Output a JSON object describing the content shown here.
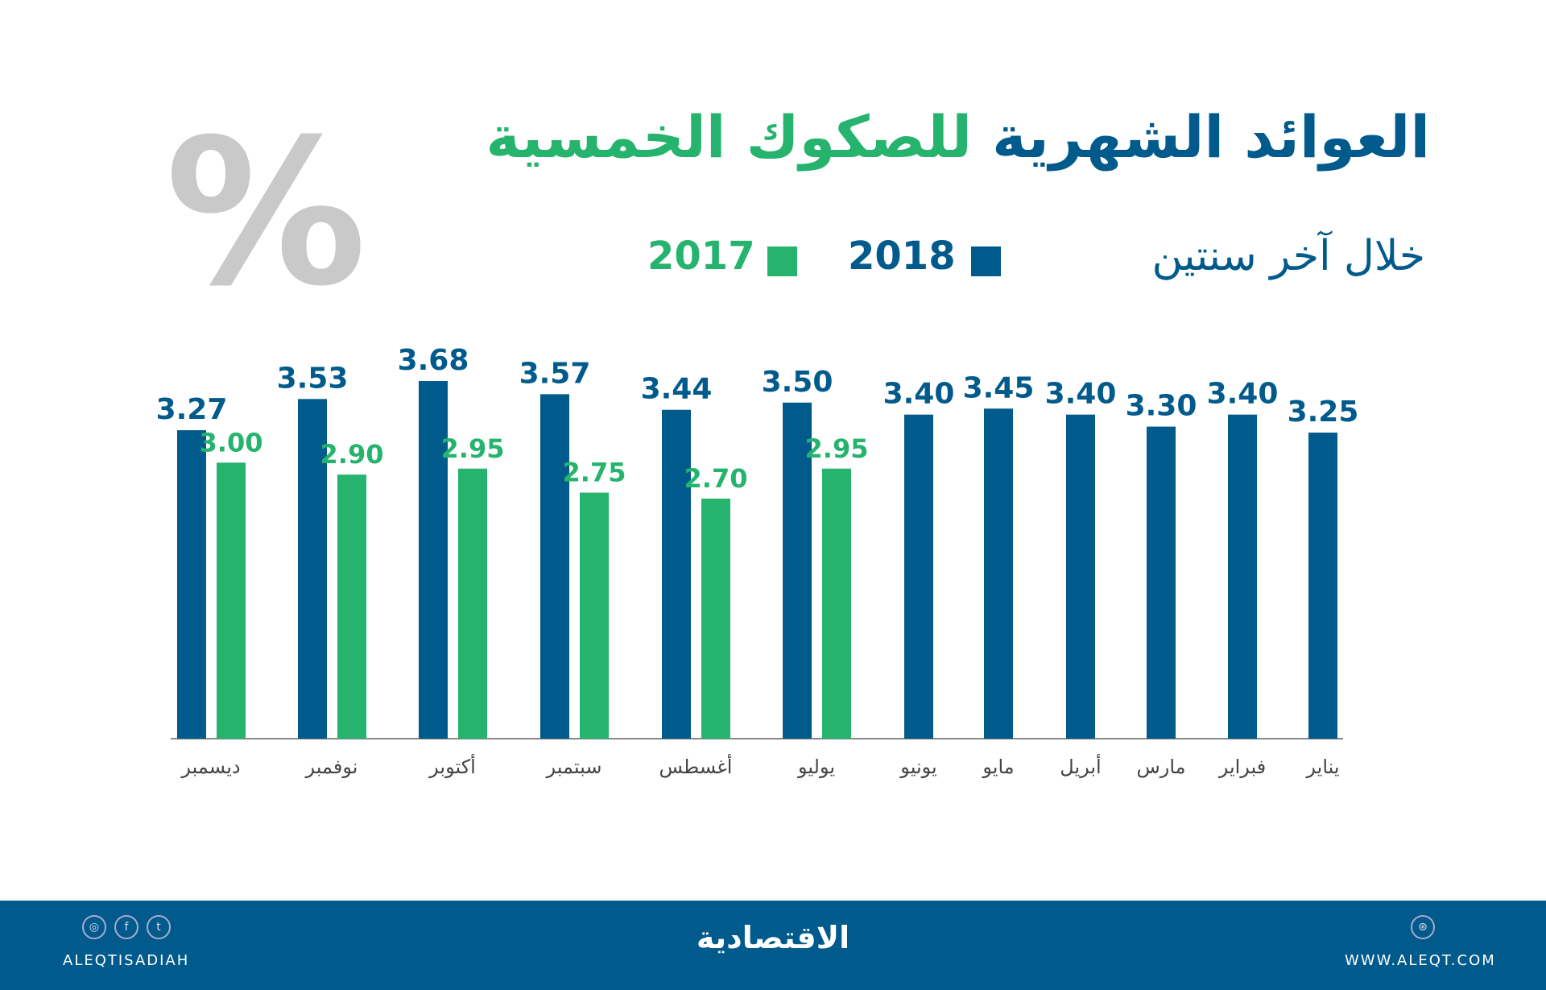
{
  "header": {
    "title_part1": "العوائد الشهرية",
    "title_part2": "للصكوك الخمسية",
    "subtitle": "خلال آخر سنتين",
    "percent_symbol": "%"
  },
  "colors": {
    "blue": "#005b8c",
    "green": "#25b36d",
    "gray": "#c9c9c9"
  },
  "chart_data": {
    "type": "bar",
    "title": "العوائد الشهرية للصكوك الخمسية",
    "subtitle": "خلال آخر سنتين",
    "unit": "%",
    "categories": [
      "ديسمبر",
      "نوفمبر",
      "أكتوبر",
      "سبتمبر",
      "أغسطس",
      "يوليو",
      "يونيو",
      "مايو",
      "أبريل",
      "مارس",
      "فبراير",
      "يناير"
    ],
    "series": [
      {
        "name": "2018",
        "color": "#005b8c",
        "values": [
          3.27,
          3.53,
          3.68,
          3.57,
          3.44,
          3.5,
          3.4,
          3.45,
          3.4,
          3.3,
          3.4,
          3.25
        ],
        "labels": [
          "3.27",
          "3.53",
          "3.68",
          "3.57",
          "3.44",
          "3.50",
          "3.40",
          "3.45",
          "3.40",
          "3.30",
          "3.40",
          "3.25"
        ]
      },
      {
        "name": "2017",
        "color": "#25b36d",
        "values": [
          3.0,
          2.9,
          2.95,
          2.75,
          2.7,
          2.95,
          null,
          null,
          null,
          null,
          null,
          null
        ],
        "labels": [
          "3.00",
          "2.90",
          "2.95",
          "2.75",
          "2.70",
          "2.95"
        ]
      }
    ],
    "legend": "top",
    "grid": false
  },
  "footer": {
    "handle": "ALEQTISADIAH",
    "logo": "الاقتصادية",
    "website": "WWW.ALEQT.COM",
    "icons": [
      "instagram-icon",
      "facebook-icon",
      "twitter-icon",
      "dribbble-icon"
    ]
  }
}
